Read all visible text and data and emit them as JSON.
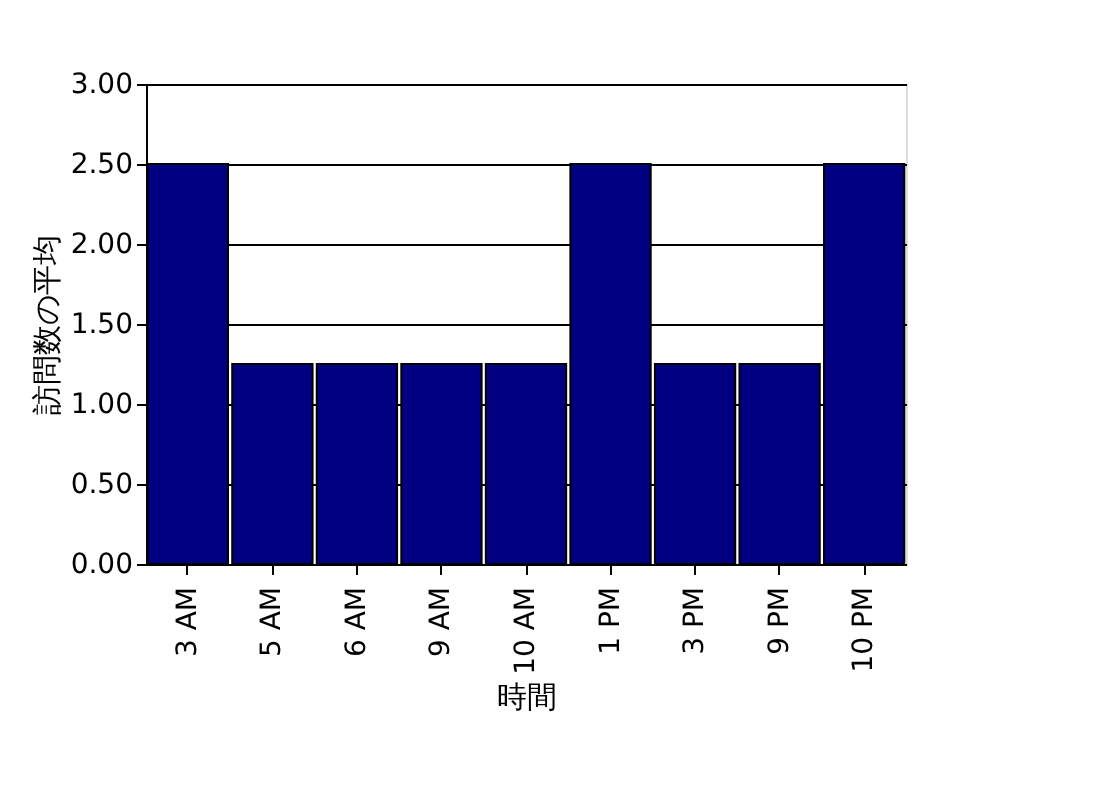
{
  "chart_data": {
    "type": "bar",
    "xlabel": "時間",
    "ylabel": "訪問数の平均",
    "categories": [
      "3 AM",
      "5 AM",
      "6 AM",
      "9 AM",
      "10 AM",
      "1 PM",
      "3 PM",
      "9 PM",
      "10 PM"
    ],
    "values": [
      2.5,
      1.25,
      1.25,
      1.25,
      1.25,
      2.5,
      1.25,
      1.25,
      2.5
    ],
    "color": "#000080",
    "ylim": [
      0,
      3
    ],
    "yticks": [
      {
        "value": 0,
        "label": "0.00"
      },
      {
        "value": 0.5,
        "label": "0.50"
      },
      {
        "value": 1,
        "label": "1.00"
      },
      {
        "value": 1.5,
        "label": "1.50"
      },
      {
        "value": 2,
        "label": "2.00"
      },
      {
        "value": 2.5,
        "label": "2.50"
      },
      {
        "value": 3,
        "label": "3.00"
      }
    ],
    "grid": "y"
  }
}
